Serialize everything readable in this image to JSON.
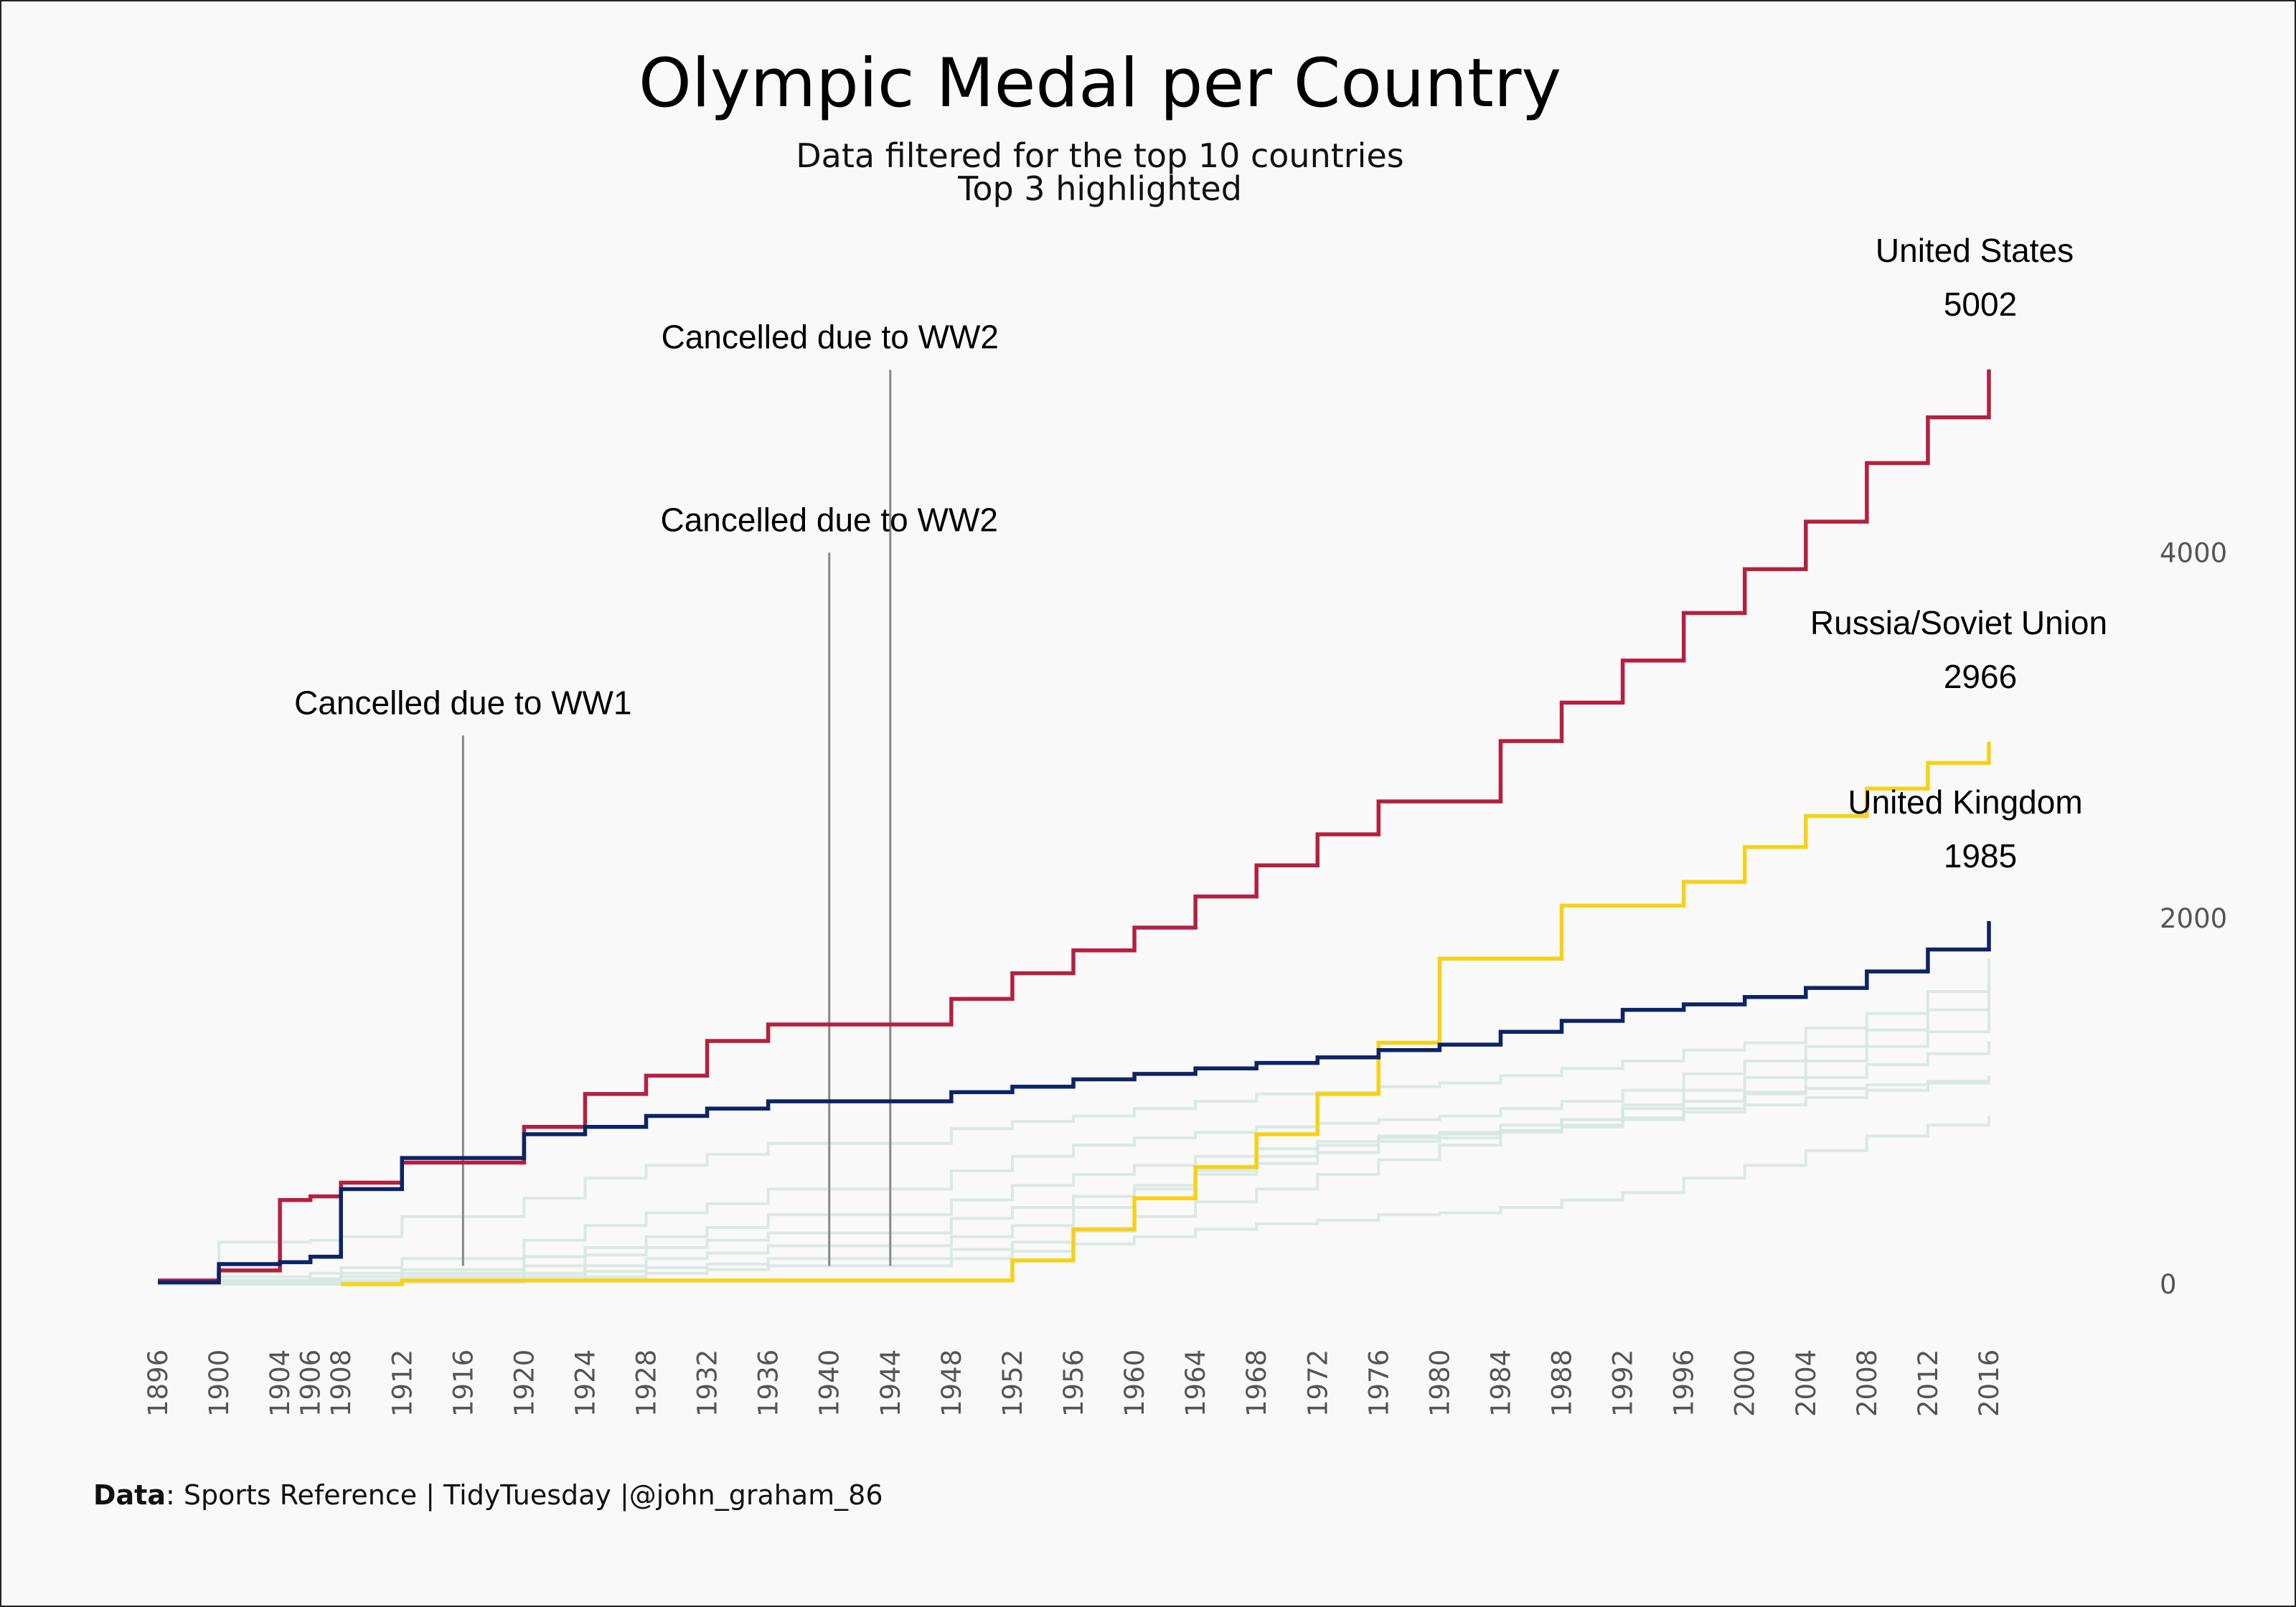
{
  "chart_data": {
    "type": "line",
    "line_style": "step",
    "title": "Olympic Medal per Country",
    "subtitle_lines": [
      "Data filtered for the top 10 countries",
      "Top 3 highlighted"
    ],
    "xlabel": "",
    "ylabel": "",
    "x_ticks": [
      1896,
      1900,
      1904,
      1906,
      1908,
      1912,
      1916,
      1920,
      1924,
      1928,
      1932,
      1936,
      1940,
      1944,
      1948,
      1952,
      1956,
      1960,
      1964,
      1968,
      1972,
      1976,
      1980,
      1984,
      1988,
      1992,
      1996,
      2000,
      2004,
      2008,
      2012,
      2016
    ],
    "y_ticks": [
      0,
      2000,
      4000
    ],
    "y_axis_position": "right",
    "ylim": [
      0,
      5002
    ],
    "grid": false,
    "legend": "none",
    "highlight_series": [
      {
        "name": "United States",
        "label_value": "5002",
        "color": "#b5203f",
        "points": [
          [
            1896,
            20
          ],
          [
            1900,
            75
          ],
          [
            1904,
            460
          ],
          [
            1906,
            480
          ],
          [
            1908,
            555
          ],
          [
            1912,
            665
          ],
          [
            1916,
            665
          ],
          [
            1920,
            860
          ],
          [
            1924,
            1040
          ],
          [
            1928,
            1140
          ],
          [
            1932,
            1330
          ],
          [
            1936,
            1420
          ],
          [
            1940,
            1420
          ],
          [
            1944,
            1420
          ],
          [
            1948,
            1560
          ],
          [
            1952,
            1700
          ],
          [
            1956,
            1825
          ],
          [
            1960,
            1950
          ],
          [
            1964,
            2120
          ],
          [
            1968,
            2290
          ],
          [
            1972,
            2460
          ],
          [
            1976,
            2640
          ],
          [
            1980,
            2640
          ],
          [
            1984,
            2970
          ],
          [
            1988,
            3180
          ],
          [
            1992,
            3410
          ],
          [
            1996,
            3670
          ],
          [
            2000,
            3910
          ],
          [
            2004,
            4170
          ],
          [
            2008,
            4490
          ],
          [
            2012,
            4740
          ],
          [
            2016,
            5002
          ]
        ]
      },
      {
        "name": "Russia/Soviet Union",
        "label_value": "2966",
        "color": "#f7d117",
        "points": [
          [
            1908,
            0
          ],
          [
            1912,
            20
          ],
          [
            1952,
            130
          ],
          [
            1956,
            300
          ],
          [
            1960,
            470
          ],
          [
            1964,
            640
          ],
          [
            1968,
            820
          ],
          [
            1972,
            1040
          ],
          [
            1976,
            1320
          ],
          [
            1980,
            1780
          ],
          [
            1984,
            1780
          ],
          [
            1988,
            2070
          ],
          [
            1992,
            2070
          ],
          [
            1996,
            2200
          ],
          [
            2000,
            2390
          ],
          [
            2004,
            2560
          ],
          [
            2008,
            2710
          ],
          [
            2012,
            2850
          ],
          [
            2016,
            2966
          ]
        ]
      },
      {
        "name": "United Kingdom",
        "label_value": "1985",
        "color": "#0c2366",
        "points": [
          [
            1896,
            10
          ],
          [
            1900,
            110
          ],
          [
            1904,
            120
          ],
          [
            1906,
            150
          ],
          [
            1908,
            520
          ],
          [
            1912,
            690
          ],
          [
            1916,
            690
          ],
          [
            1920,
            820
          ],
          [
            1924,
            860
          ],
          [
            1928,
            920
          ],
          [
            1932,
            960
          ],
          [
            1936,
            1000
          ],
          [
            1940,
            1000
          ],
          [
            1944,
            1000
          ],
          [
            1948,
            1050
          ],
          [
            1952,
            1080
          ],
          [
            1956,
            1120
          ],
          [
            1960,
            1150
          ],
          [
            1964,
            1180
          ],
          [
            1968,
            1210
          ],
          [
            1972,
            1240
          ],
          [
            1976,
            1280
          ],
          [
            1980,
            1310
          ],
          [
            1984,
            1380
          ],
          [
            1988,
            1440
          ],
          [
            1992,
            1500
          ],
          [
            1996,
            1530
          ],
          [
            2000,
            1570
          ],
          [
            2004,
            1620
          ],
          [
            2008,
            1710
          ],
          [
            2012,
            1830
          ],
          [
            2016,
            1985
          ]
        ]
      }
    ],
    "background_series": [
      {
        "points": [
          [
            1896,
            10
          ],
          [
            1900,
            230
          ],
          [
            1904,
            230
          ],
          [
            1906,
            240
          ],
          [
            1908,
            260
          ],
          [
            1912,
            370
          ],
          [
            1916,
            370
          ],
          [
            1920,
            470
          ],
          [
            1924,
            580
          ],
          [
            1928,
            650
          ],
          [
            1932,
            710
          ],
          [
            1936,
            770
          ],
          [
            1948,
            850
          ],
          [
            1952,
            890
          ],
          [
            1956,
            920
          ],
          [
            1960,
            960
          ],
          [
            1964,
            1000
          ],
          [
            1968,
            1040
          ],
          [
            1972,
            1050
          ],
          [
            1976,
            1080
          ],
          [
            1980,
            1100
          ],
          [
            1984,
            1140
          ],
          [
            1988,
            1180
          ],
          [
            1992,
            1220
          ],
          [
            1996,
            1280
          ],
          [
            2000,
            1320
          ],
          [
            2004,
            1400
          ],
          [
            2008,
            1480
          ],
          [
            2012,
            1600
          ],
          [
            2016,
            1780
          ]
        ]
      },
      {
        "points": [
          [
            1896,
            5
          ],
          [
            1900,
            40
          ],
          [
            1904,
            40
          ],
          [
            1906,
            60
          ],
          [
            1908,
            90
          ],
          [
            1912,
            140
          ],
          [
            1916,
            140
          ],
          [
            1920,
            240
          ],
          [
            1924,
            320
          ],
          [
            1928,
            390
          ],
          [
            1932,
            440
          ],
          [
            1936,
            520
          ],
          [
            1948,
            620
          ],
          [
            1952,
            700
          ],
          [
            1956,
            760
          ],
          [
            1960,
            800
          ],
          [
            1964,
            830
          ],
          [
            1968,
            860
          ],
          [
            1972,
            880
          ],
          [
            1976,
            900
          ],
          [
            1980,
            920
          ],
          [
            1984,
            960
          ],
          [
            1988,
            1000
          ],
          [
            1992,
            1060
          ],
          [
            1996,
            1150
          ],
          [
            2000,
            1220
          ],
          [
            2004,
            1300
          ],
          [
            2008,
            1390
          ],
          [
            2012,
            1500
          ],
          [
            2016,
            1640
          ]
        ]
      },
      {
        "points": [
          [
            1896,
            5
          ],
          [
            1900,
            20
          ],
          [
            1904,
            20
          ],
          [
            1906,
            30
          ],
          [
            1908,
            60
          ],
          [
            1912,
            80
          ],
          [
            1916,
            80
          ],
          [
            1920,
            150
          ],
          [
            1924,
            200
          ],
          [
            1928,
            260
          ],
          [
            1932,
            310
          ],
          [
            1936,
            380
          ],
          [
            1948,
            460
          ],
          [
            1952,
            540
          ],
          [
            1956,
            600
          ],
          [
            1960,
            650
          ],
          [
            1964,
            700
          ],
          [
            1968,
            740
          ],
          [
            1972,
            780
          ],
          [
            1976,
            810
          ],
          [
            1980,
            830
          ],
          [
            1984,
            870
          ],
          [
            1988,
            900
          ],
          [
            1992,
            980
          ],
          [
            1996,
            1060
          ],
          [
            2000,
            1130
          ],
          [
            2004,
            1220
          ],
          [
            2008,
            1300
          ],
          [
            2012,
            1380
          ],
          [
            2016,
            1520
          ]
        ]
      },
      {
        "points": [
          [
            1896,
            0
          ],
          [
            1900,
            10
          ],
          [
            1904,
            10
          ],
          [
            1906,
            20
          ],
          [
            1908,
            40
          ],
          [
            1912,
            60
          ],
          [
            1916,
            60
          ],
          [
            1920,
            100
          ],
          [
            1924,
            160
          ],
          [
            1928,
            200
          ],
          [
            1932,
            240
          ],
          [
            1936,
            280
          ],
          [
            1948,
            360
          ],
          [
            1952,
            420
          ],
          [
            1956,
            480
          ],
          [
            1960,
            540
          ],
          [
            1964,
            600
          ],
          [
            1968,
            660
          ],
          [
            1972,
            720
          ],
          [
            1976,
            780
          ],
          [
            1980,
            800
          ],
          [
            1984,
            830
          ],
          [
            1988,
            860
          ],
          [
            1992,
            900
          ],
          [
            1996,
            960
          ],
          [
            2000,
            1050
          ],
          [
            2004,
            1130
          ],
          [
            2008,
            1200
          ],
          [
            2012,
            1260
          ],
          [
            2016,
            1330
          ]
        ]
      },
      {
        "points": [
          [
            1896,
            0
          ],
          [
            1900,
            5
          ],
          [
            1904,
            5
          ],
          [
            1906,
            10
          ],
          [
            1908,
            20
          ],
          [
            1912,
            40
          ],
          [
            1916,
            40
          ],
          [
            1920,
            60
          ],
          [
            1924,
            100
          ],
          [
            1928,
            140
          ],
          [
            1932,
            170
          ],
          [
            1936,
            210
          ],
          [
            1948,
            260
          ],
          [
            1952,
            320
          ],
          [
            1956,
            420
          ],
          [
            1960,
            520
          ],
          [
            1964,
            620
          ],
          [
            1968,
            700
          ],
          [
            1972,
            760
          ],
          [
            1976,
            800
          ],
          [
            1980,
            820
          ],
          [
            1984,
            840
          ],
          [
            1988,
            870
          ],
          [
            1992,
            910
          ],
          [
            1996,
            940
          ],
          [
            2000,
            980
          ],
          [
            2004,
            1020
          ],
          [
            2008,
            1060
          ],
          [
            2012,
            1100
          ],
          [
            2016,
            1140
          ]
        ]
      },
      {
        "points": [
          [
            1896,
            0
          ],
          [
            1900,
            0
          ],
          [
            1904,
            0
          ],
          [
            1906,
            5
          ],
          [
            1908,
            10
          ],
          [
            1912,
            20
          ],
          [
            1916,
            20
          ],
          [
            1920,
            40
          ],
          [
            1924,
            70
          ],
          [
            1928,
            90
          ],
          [
            1932,
            110
          ],
          [
            1936,
            140
          ],
          [
            1948,
            190
          ],
          [
            1952,
            230
          ],
          [
            1956,
            290
          ],
          [
            1960,
            370
          ],
          [
            1964,
            450
          ],
          [
            1968,
            520
          ],
          [
            1972,
            600
          ],
          [
            1976,
            680
          ],
          [
            1980,
            760
          ],
          [
            1984,
            840
          ],
          [
            1988,
            900
          ],
          [
            1992,
            960
          ],
          [
            1996,
            1000
          ],
          [
            2000,
            1040
          ],
          [
            2004,
            1070
          ],
          [
            2008,
            1090
          ],
          [
            2012,
            1110
          ],
          [
            2016,
            1130
          ]
        ]
      },
      {
        "points": [
          [
            1896,
            0
          ],
          [
            1900,
            0
          ],
          [
            1904,
            0
          ],
          [
            1906,
            0
          ],
          [
            1908,
            5
          ],
          [
            1912,
            10
          ],
          [
            1916,
            10
          ],
          [
            1920,
            20
          ],
          [
            1924,
            40
          ],
          [
            1928,
            60
          ],
          [
            1932,
            80
          ],
          [
            1936,
            100
          ],
          [
            1948,
            140
          ],
          [
            1952,
            180
          ],
          [
            1956,
            220
          ],
          [
            1960,
            260
          ],
          [
            1964,
            300
          ],
          [
            1968,
            330
          ],
          [
            1972,
            350
          ],
          [
            1976,
            380
          ],
          [
            1980,
            390
          ],
          [
            1984,
            420
          ],
          [
            1988,
            460
          ],
          [
            1992,
            500
          ],
          [
            1996,
            580
          ],
          [
            2000,
            650
          ],
          [
            2004,
            730
          ],
          [
            2008,
            810
          ],
          [
            2012,
            870
          ],
          [
            2016,
            920
          ]
        ]
      }
    ],
    "annotations": [
      {
        "text": "Cancelled due to WW1",
        "year": 1916,
        "line_top_value": 3000,
        "line_bottom_value": 100
      },
      {
        "text": "Cancelled due to WW2",
        "year": 1940,
        "line_top_value": 4000,
        "line_bottom_value": 100
      },
      {
        "text": "Cancelled due to WW2",
        "year": 1944,
        "line_top_value": 5000,
        "line_bottom_value": 100
      }
    ]
  },
  "caption": {
    "bold": "Data",
    "text": ": Sports Reference | TidyTuesday |@john_graham_86"
  }
}
